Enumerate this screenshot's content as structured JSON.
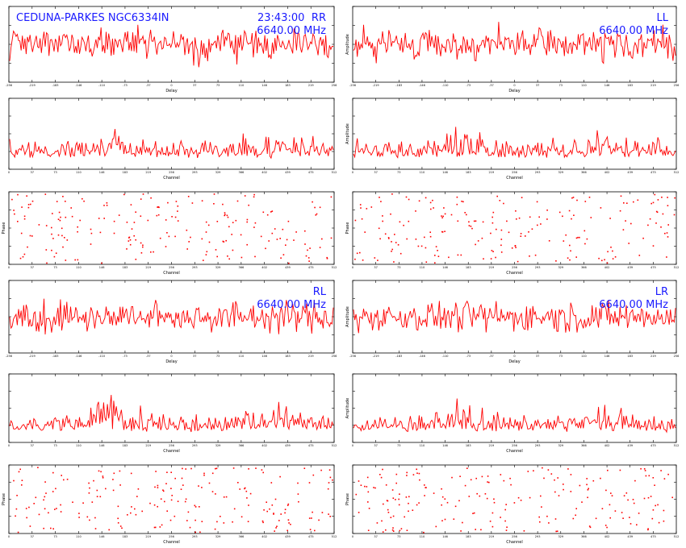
{
  "header": {
    "source_label": "CEDUNA-PARKES NGC6334IN",
    "time_label": "23:43:00"
  },
  "colors": {
    "trace": "#ff0000",
    "label": "#1a1aff",
    "axis": "#000000"
  },
  "chart_data": [
    {
      "type": "line",
      "name": "RR-delay",
      "stokes": "RR",
      "freq": "6640.00 MHz",
      "xlabel": "Delay",
      "ylabel": "",
      "xlim": [
        -256,
        256
      ],
      "ylim": [
        0,
        4
      ],
      "grid": false
    },
    {
      "type": "line",
      "name": "RR-channel",
      "stokes": "RR",
      "xlabel": "Channel",
      "ylabel": "",
      "xlim": [
        0,
        512
      ],
      "ylim": [
        0,
        5
      ],
      "grid": false
    },
    {
      "type": "scatter",
      "name": "RR-phase",
      "stokes": "RR",
      "xlabel": "Channel",
      "ylabel": "Phase",
      "xlim": [
        0,
        512
      ],
      "ylim": [
        -180,
        180
      ],
      "grid": false
    },
    {
      "type": "line",
      "name": "LL-delay",
      "stokes": "LL",
      "freq": "6640.00 MHz",
      "xlabel": "Delay",
      "ylabel": "Amplitude",
      "xlim": [
        -256,
        256
      ],
      "ylim": [
        0,
        4
      ],
      "grid": false
    },
    {
      "type": "line",
      "name": "LL-channel",
      "stokes": "LL",
      "xlabel": "Channel",
      "ylabel": "Amplitude",
      "xlim": [
        0,
        512
      ],
      "ylim": [
        0,
        5
      ],
      "grid": false
    },
    {
      "type": "scatter",
      "name": "LL-phase",
      "stokes": "LL",
      "xlabel": "Channel",
      "ylabel": "Phase",
      "xlim": [
        0,
        512
      ],
      "ylim": [
        -180,
        180
      ],
      "grid": false
    },
    {
      "type": "line",
      "name": "RL-delay",
      "stokes": "RL",
      "freq": "6640.00 MHz",
      "xlabel": "Delay",
      "ylabel": "",
      "xlim": [
        -256,
        256
      ],
      "ylim": [
        0,
        4
      ],
      "grid": false
    },
    {
      "type": "line",
      "name": "RL-channel",
      "stokes": "RL",
      "xlabel": "Channel",
      "ylabel": "",
      "xlim": [
        0,
        512
      ],
      "ylim": [
        0,
        5
      ],
      "grid": false
    },
    {
      "type": "scatter",
      "name": "RL-phase",
      "stokes": "RL",
      "xlabel": "Channel",
      "ylabel": "Phase",
      "xlim": [
        0,
        512
      ],
      "ylim": [
        -180,
        180
      ],
      "grid": false
    },
    {
      "type": "line",
      "name": "LR-delay",
      "stokes": "LR",
      "freq": "6640.00 MHz",
      "xlabel": "Delay",
      "ylabel": "Amplitude",
      "xlim": [
        -256,
        256
      ],
      "ylim": [
        0,
        4
      ],
      "grid": false
    },
    {
      "type": "line",
      "name": "LR-channel",
      "stokes": "LR",
      "xlabel": "Channel",
      "ylabel": "Amplitude",
      "xlim": [
        0,
        512
      ],
      "ylim": [
        0,
        5
      ],
      "grid": false
    },
    {
      "type": "scatter",
      "name": "LR-phase",
      "stokes": "LR",
      "xlabel": "Channel",
      "ylabel": "Phase",
      "xlim": [
        0,
        512
      ],
      "ylim": [
        -180,
        180
      ],
      "grid": false
    }
  ]
}
